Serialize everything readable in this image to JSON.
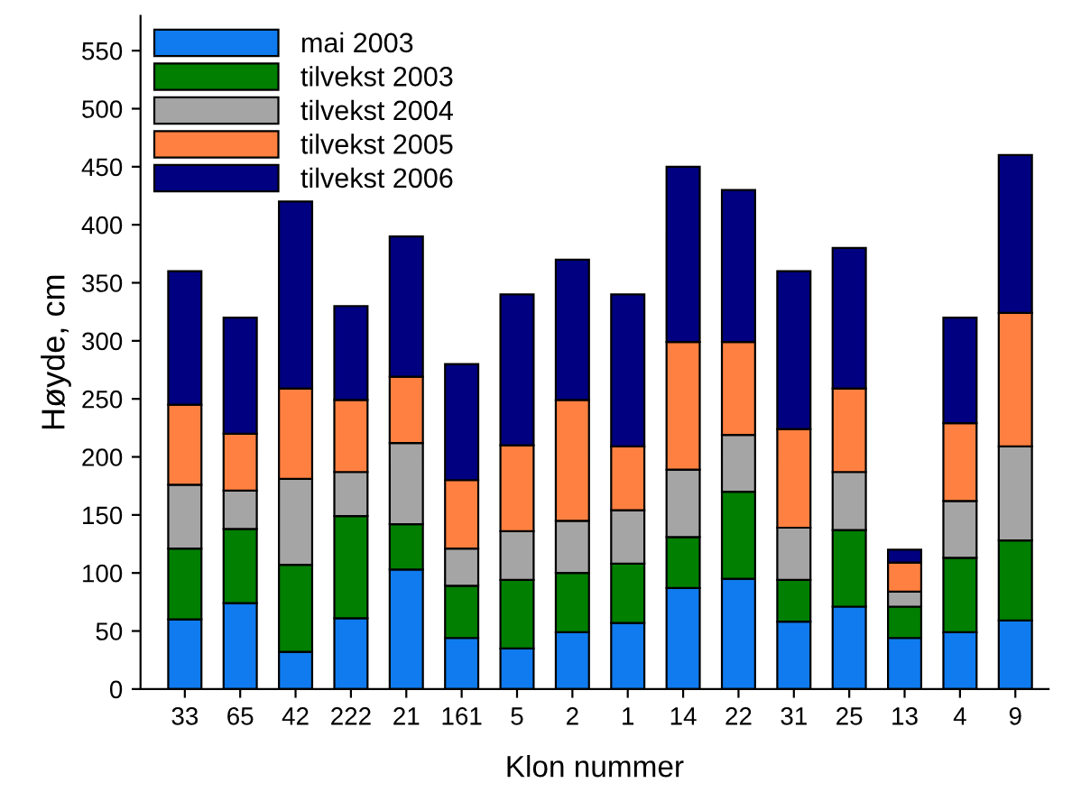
{
  "chart_data": {
    "type": "bar",
    "stacked": true,
    "xlabel": "Klon nummer",
    "ylabel": "Høyde, cm",
    "categories": [
      "33",
      "65",
      "42",
      "222",
      "21",
      "161",
      "5",
      "2",
      "1",
      "14",
      "22",
      "31",
      "25",
      "13",
      "4",
      "9"
    ],
    "series": [
      {
        "name": "mai 2003",
        "color": "#0f7bef",
        "values": [
          60,
          74,
          32,
          61,
          103,
          44,
          35,
          49,
          57,
          87,
          95,
          58,
          71,
          44,
          49,
          59
        ]
      },
      {
        "name": "tilvekst 2003",
        "color": "#007f00",
        "values": [
          61,
          64,
          75,
          88,
          39,
          45,
          59,
          51,
          51,
          44,
          75,
          36,
          66,
          27,
          64,
          69
        ]
      },
      {
        "name": "tilvekst 2004",
        "color": "#a5a5a5",
        "values": [
          55,
          33,
          74,
          38,
          70,
          32,
          42,
          45,
          46,
          58,
          49,
          45,
          50,
          13,
          49,
          81
        ]
      },
      {
        "name": "tilvekst 2005",
        "color": "#ff8040",
        "values": [
          69,
          49,
          78,
          62,
          57,
          59,
          74,
          104,
          55,
          110,
          80,
          85,
          72,
          25,
          67,
          115
        ]
      },
      {
        "name": "tilvekst 2006",
        "color": "#000080",
        "values": [
          115,
          100,
          161,
          81,
          121,
          100,
          130,
          121,
          131,
          151,
          131,
          136,
          121,
          11,
          91,
          136
        ]
      }
    ],
    "ylim": [
      0,
      580
    ],
    "yticks": [
      0,
      50,
      100,
      150,
      200,
      250,
      300,
      350,
      400,
      450,
      500,
      550
    ],
    "grid": false,
    "legend": "top left"
  }
}
